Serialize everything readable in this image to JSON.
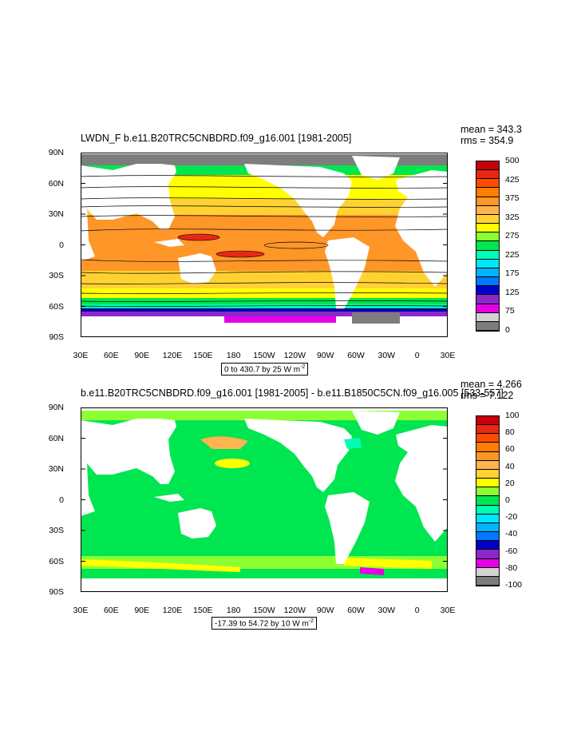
{
  "panel1": {
    "title": "LWDN_F b.e11.B20TRC5CNBDRD.f09_g16.001 [1981-2005]",
    "mean": "mean = 343.3",
    "rms": "rms = 354.9",
    "info": "0 to 430.7 by 25  W m",
    "info_sup": "-2",
    "colorbar": {
      "labels": [
        "500",
        "425",
        "375",
        "325",
        "275",
        "225",
        "175",
        "125",
        "75",
        "0"
      ],
      "colors": [
        "#c8000a",
        "#e62814",
        "#ff4b00",
        "#ff7d00",
        "#ff9628",
        "#ffb450",
        "#ffd232",
        "#ffff00",
        "#8cff32",
        "#00e650",
        "#00ffb4",
        "#00e6ff",
        "#00b4ff",
        "#0078ff",
        "#0000c8",
        "#8c28c8",
        "#e600e6",
        "#d2d2d2",
        "#7d7d7d"
      ]
    }
  },
  "panel2": {
    "title": "b.e11.B20TRC5CNBDRD.f09_g16.001 [1981-2005] - b.e11.B1850C5CN.f09_g16.005 [533-557]",
    "mean": "mean = 4.266",
    "rms": "rms = 7.122",
    "info": "-17.39 to 54.72 by 10  W m",
    "info_sup": "-2",
    "colorbar": {
      "labels": [
        "100",
        "80",
        "60",
        "40",
        "20",
        "0",
        "-20",
        "-40",
        "-60",
        "-80",
        "-100"
      ],
      "colors": [
        "#c8000a",
        "#e62814",
        "#ff4b00",
        "#ff7d00",
        "#ff9628",
        "#ffb450",
        "#ffd232",
        "#ffff00",
        "#8cff32",
        "#00e650",
        "#00ffb4",
        "#00e6ff",
        "#00b4ff",
        "#0078ff",
        "#0000c8",
        "#8c28c8",
        "#e600e6",
        "#d2d2d2",
        "#7d7d7d"
      ]
    }
  },
  "axes": {
    "lat_labels": [
      "90N",
      "60N",
      "30N",
      "0",
      "30S",
      "60S",
      "90S"
    ],
    "lon_labels": [
      "30E",
      "60E",
      "90E",
      "120E",
      "150E",
      "180",
      "150W",
      "120W",
      "90W",
      "60W",
      "30W",
      "0",
      "30E"
    ]
  }
}
